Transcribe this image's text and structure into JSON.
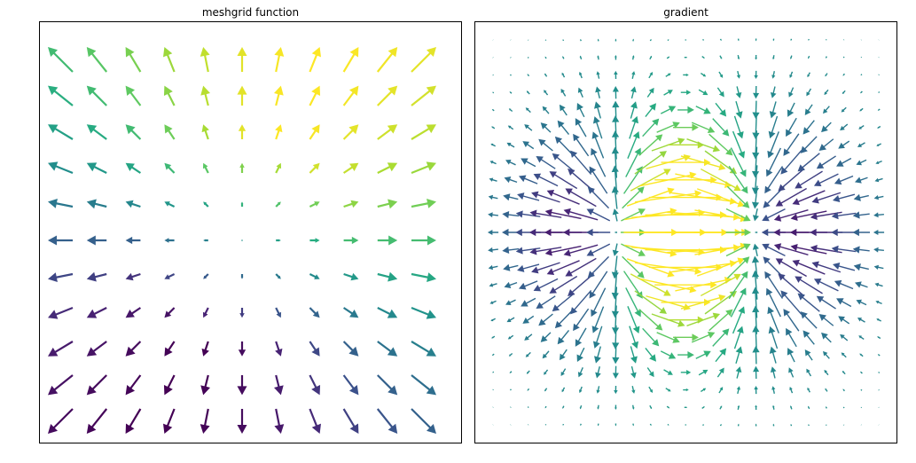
{
  "chart_data": [
    {
      "type": "quiver",
      "title": "meshgrid function",
      "grid": false,
      "axes_ticks": false,
      "colormap": "viridis",
      "field": {
        "u": "x",
        "v": "y"
      },
      "x": [
        -2.0,
        -1.6,
        -1.2,
        -0.8,
        -0.4,
        0.0,
        0.4,
        0.8,
        1.2,
        1.6,
        2.0
      ],
      "y": [
        2.0,
        1.6,
        1.2,
        0.8,
        0.4,
        0.0,
        -0.4,
        -0.8,
        -1.2,
        -1.6,
        -2.0
      ],
      "cols": 11,
      "rows": 11
    },
    {
      "type": "quiver",
      "title": "gradient",
      "grid": false,
      "axes_ticks": false,
      "colormap": "viridis",
      "field": "gradient of x*exp(-x^2 - y^2)",
      "x_range": [
        -2.0,
        2.0
      ],
      "y_range": [
        -2.0,
        2.0
      ],
      "cols": 23,
      "rows": 23
    }
  ]
}
